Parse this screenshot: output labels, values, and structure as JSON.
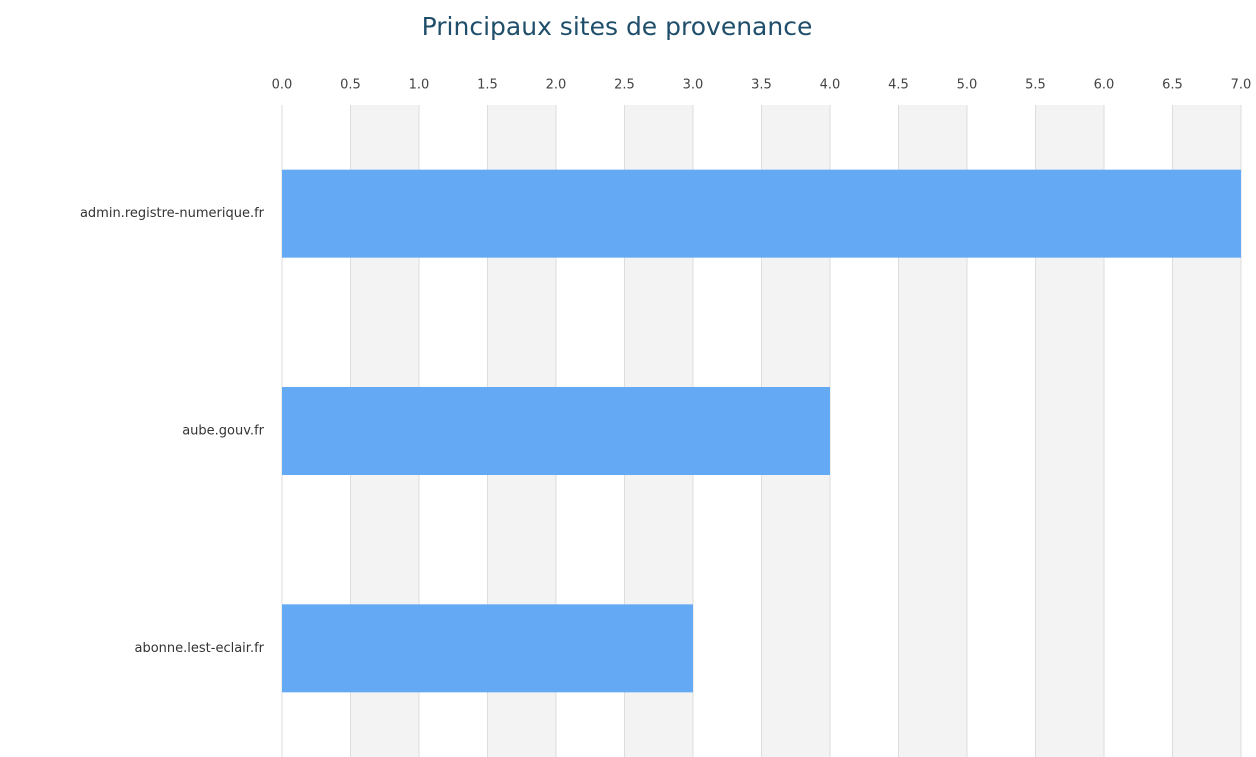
{
  "chart_data": {
    "type": "bar",
    "orientation": "horizontal",
    "title": "Principaux sites de provenance",
    "categories": [
      "admin.registre-numerique.fr",
      "aube.gouv.fr",
      "abonne.lest-eclair.fr"
    ],
    "values": [
      7,
      4,
      3
    ],
    "color": "#63a9f4",
    "xlim": [
      0,
      7
    ],
    "xticks": [
      {
        "value": 0,
        "label": "0.0"
      },
      0.5,
      {
        "value": 1,
        "label": "1.0"
      },
      1.5,
      {
        "value": 2,
        "label": "2.0"
      },
      2.5,
      {
        "value": 3,
        "label": "3.0"
      },
      3.5,
      {
        "value": 4,
        "label": "4.0"
      },
      4.5,
      {
        "value": 5,
        "label": "5.0"
      },
      5.5,
      {
        "value": 6,
        "label": "6.0"
      },
      6.5,
      {
        "value": 7,
        "label": "7.0"
      }
    ],
    "grid": true
  }
}
